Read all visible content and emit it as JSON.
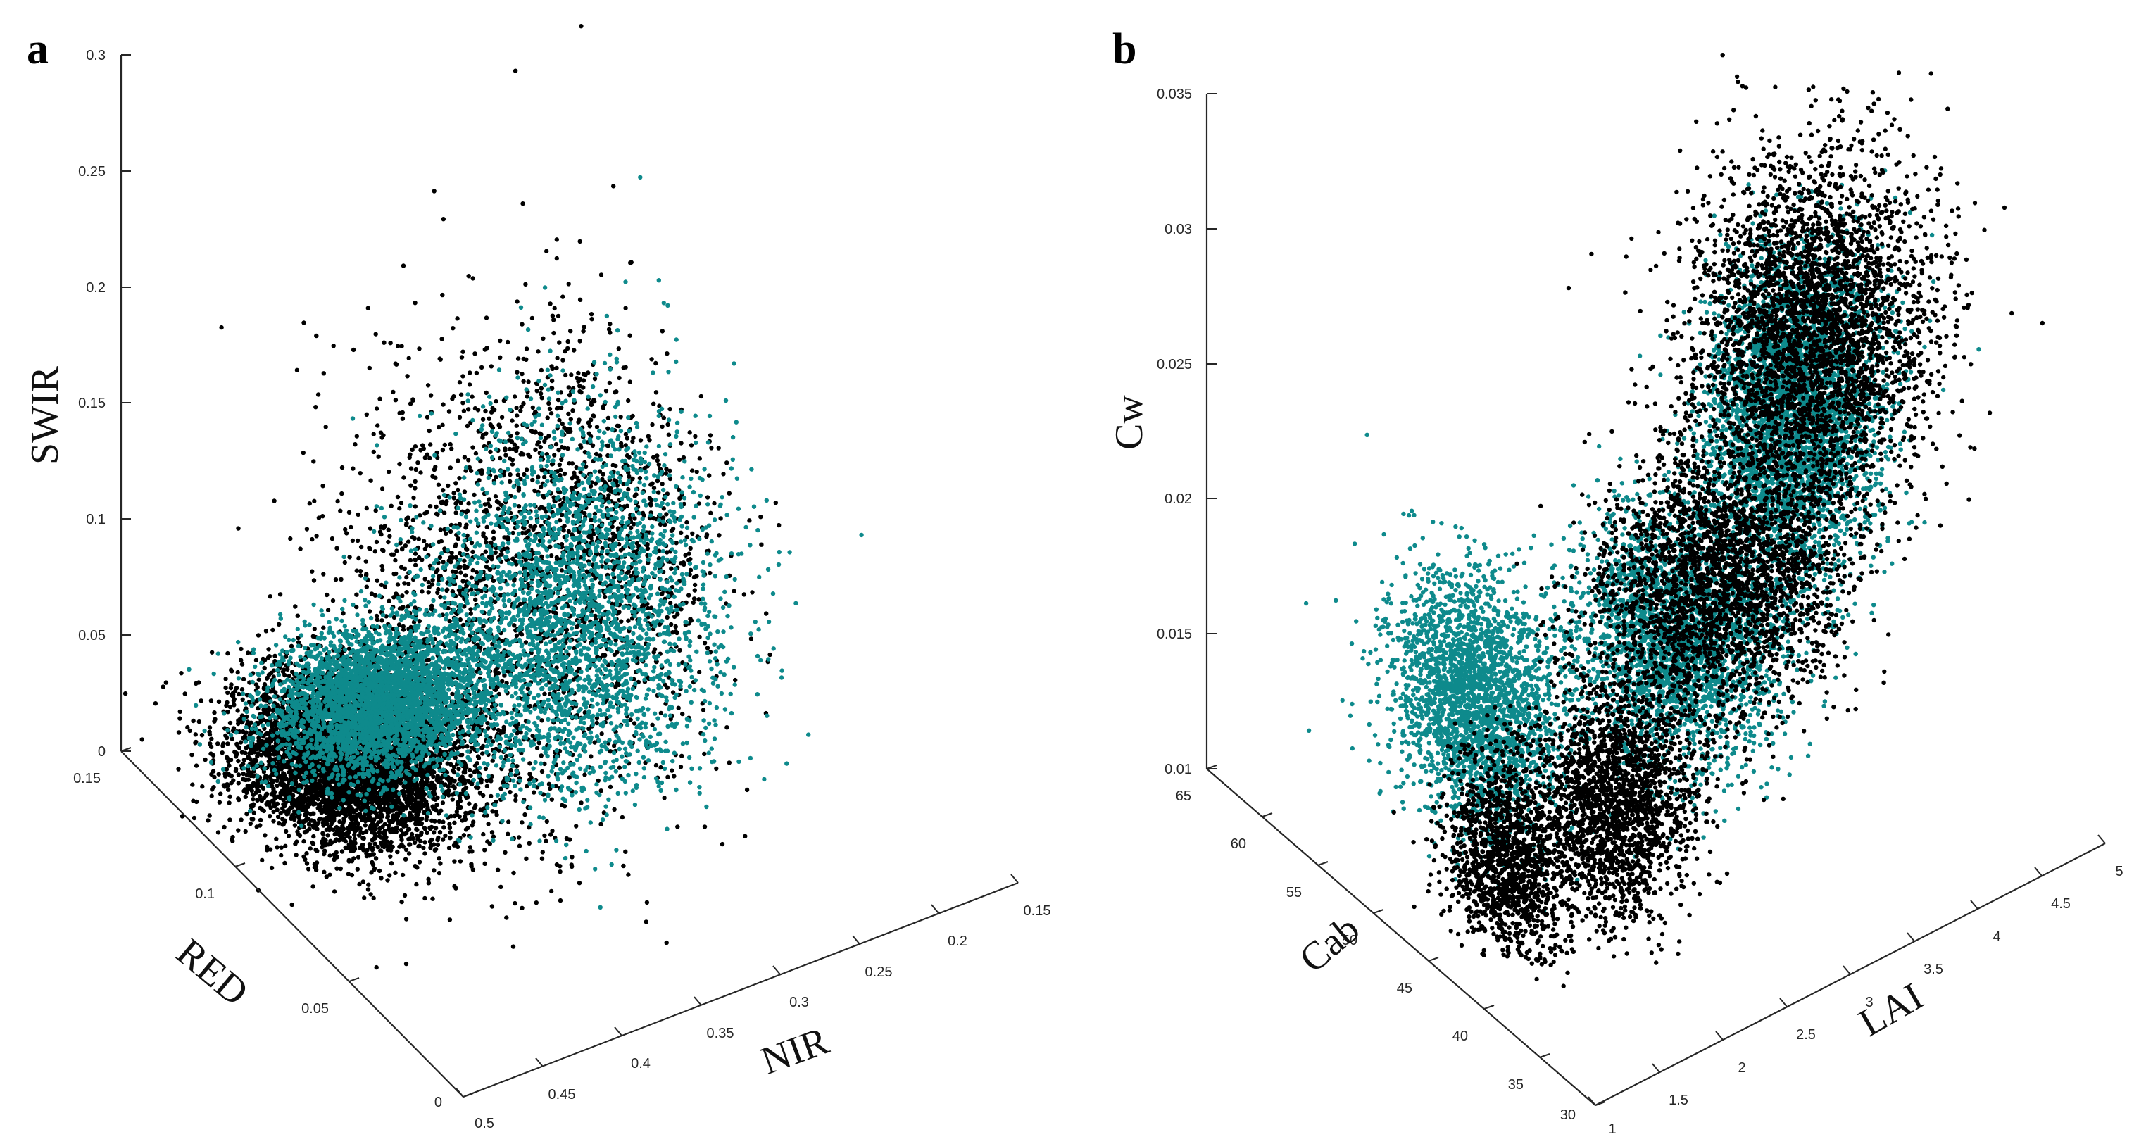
{
  "colors": {
    "group_a": "#000000",
    "group_b": "#0e8a8c",
    "axis": "#262626"
  },
  "chart_data": [
    {
      "type": "scatter",
      "panel_label": "a",
      "title": "",
      "xlabel": "NIR",
      "ylabel": "RED",
      "zlabel": "SWIR",
      "xlim": [
        0.15,
        0.5
      ],
      "ylim": [
        0,
        0.15
      ],
      "zlim": [
        0,
        0.3
      ],
      "x_ticks": [
        "0.15",
        "0.2",
        "0.25",
        "0.3",
        "0.35",
        "0.4",
        "0.45",
        "0.5"
      ],
      "y_ticks": [
        "0",
        "0.05",
        "0.1",
        "0.15"
      ],
      "z_ticks": [
        "0",
        "0.05",
        "0.1",
        "0.15",
        "0.2",
        "0.25",
        "0.3"
      ],
      "grid": false,
      "series": [
        {
          "color": "#000000",
          "clusters": [
            {
              "center": [
                0.42,
                0.045,
                0.02
              ],
              "spread": [
                0.03,
                0.015,
                0.01
              ],
              "count": 5000
            },
            {
              "center": [
                0.38,
                0.085,
                0.12
              ],
              "spread": [
                0.05,
                0.02,
                0.05
              ],
              "count": 2000
            },
            {
              "center": [
                0.36,
                0.12,
                0.18
              ],
              "spread": [
                0.02,
                0.02,
                0.03
              ],
              "count": 500
            }
          ]
        },
        {
          "color": "#0e8a8c",
          "clusters": [
            {
              "center": [
                0.38,
                0.03,
                0.02
              ],
              "spread": [
                0.03,
                0.01,
                0.01
              ],
              "count": 3500
            },
            {
              "center": [
                0.3,
                0.06,
                0.06
              ],
              "spread": [
                0.04,
                0.015,
                0.04
              ],
              "count": 3000
            }
          ]
        }
      ]
    },
    {
      "type": "scatter",
      "panel_label": "b",
      "title": "",
      "xlabel": "LAI",
      "ylabel": "Cab",
      "zlabel": "Cw",
      "xlim": [
        1,
        5
      ],
      "ylim": [
        30,
        65
      ],
      "zlim": [
        0.01,
        0.035
      ],
      "x_ticks": [
        "1",
        "1.5",
        "2",
        "2.5",
        "3",
        "3.5",
        "4",
        "4.5",
        "5"
      ],
      "y_ticks": [
        "30",
        "35",
        "40",
        "45",
        "50",
        "55",
        "60",
        "65"
      ],
      "z_ticks": [
        "0.01",
        "0.015",
        "0.02",
        "0.025",
        "0.03",
        "0.035"
      ],
      "grid": false,
      "series": [
        {
          "color": "#0e8a8c",
          "clusters": [
            {
              "center": [
                1.8,
                50,
                0.016
              ],
              "spread": [
                0.2,
                3,
                0.002
              ],
              "count": 2500
            },
            {
              "center": [
                2.5,
                40,
                0.02
              ],
              "spread": [
                0.3,
                3,
                0.002
              ],
              "count": 2500
            },
            {
              "center": [
                3.0,
                35,
                0.029
              ],
              "spread": [
                0.3,
                2,
                0.003
              ],
              "count": 3500
            }
          ]
        },
        {
          "color": "#000000",
          "clusters": [
            {
              "center": [
                1.6,
                45,
                0.012
              ],
              "spread": [
                0.15,
                2,
                0.002
              ],
              "count": 1500
            },
            {
              "center": [
                2.2,
                42,
                0.014
              ],
              "spread": [
                0.25,
                2,
                0.002
              ],
              "count": 2000
            },
            {
              "center": [
                3.2,
                44,
                0.019
              ],
              "spread": [
                0.4,
                3,
                0.002
              ],
              "count": 2500
            },
            {
              "center": [
                4.0,
                45,
                0.026
              ],
              "spread": [
                0.4,
                3,
                0.003
              ],
              "count": 3500
            }
          ]
        }
      ]
    }
  ]
}
